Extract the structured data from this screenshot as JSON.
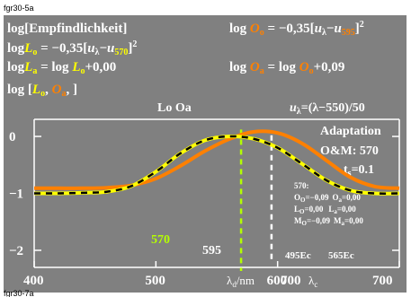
{
  "header": {
    "top_id": "fgr30-5a",
    "bottom_id": "fgr30-7a"
  },
  "formulas": {
    "left1": "log[Empfindlichkeit]",
    "left2_main": "log",
    "left2_var": "L",
    "left2_sub": "o",
    "left2_rest": " = −0,35[",
    "left2_u": "u",
    "left2_usub": "λ",
    "left2_minus": "−",
    "left2_u2": "u",
    "left2_u2sub": "570",
    "left2_close": "]",
    "left2_sup": "2",
    "left3_main": "log",
    "left3_var": "L",
    "left3_sub": "a",
    "left3_eq": " = log ",
    "left3_var2": "L",
    "left3_sub2": "o",
    "left3_rest": "+0,00",
    "left4_open": "log [",
    "left4_var1": "L",
    "left4_sub1": "o",
    "left4_comma": ", ",
    "left4_var2": "O",
    "left4_sub2": "a",
    "left4_close": ", ]",
    "right1_main": "log ",
    "right1_var": "O",
    "right1_sub": "o",
    "right1_rest": " = −0,35[",
    "right1_u": "u",
    "right1_usub": "λ",
    "right1_minus": "−",
    "right1_u2": "u",
    "right1_u2sub": "595",
    "right1_close": "]",
    "right1_sup": "2",
    "right2_main": "log ",
    "right2_var": "O",
    "right2_sub": "a",
    "right2_eq": " = log ",
    "right2_var2": "O",
    "right2_sub2": "o",
    "right2_rest": "+0,09"
  },
  "plot": {
    "peak_label": "Lo Oa",
    "u_formula": "u",
    "u_formula_sub": "λ",
    "u_formula_rest": "=(λ−550)/50",
    "adaptation": "Adaptation",
    "om": "O&M: 570",
    "ts": "t",
    "ts_sub": "s",
    "ts_rest": "=0.1",
    "marker_570": "570",
    "marker_595": "595",
    "ec495": "495Ec",
    "ec565": "565Ec",
    "info": {
      "title": "570:",
      "rows": [
        [
          "O",
          "O",
          "=−0,09",
          "O",
          "a",
          "=0,00"
        ],
        [
          "L",
          "O",
          "=0,00",
          "L",
          "a",
          "=0,00"
        ],
        [
          "M",
          "O",
          "=−0,09",
          "M",
          "a",
          "=0,00"
        ]
      ]
    }
  },
  "axis_labels": {
    "x_lambda_d": "λ",
    "x_lambda_d_sub": "d",
    "x_unit": "/nm",
    "x_700": "700",
    "x_lambda_c": "λ",
    "x_lambda_c_sub": "c"
  },
  "colors": {
    "background": "#808080",
    "yellow": "#ffff00",
    "orange": "#ff8000",
    "black_curve": "#000000",
    "white": "#ffffff",
    "yellowgreen": "#b4ff00"
  },
  "chart_data": {
    "type": "line",
    "xlim": [
      400,
      700
    ],
    "ylim": [
      -2.3,
      0.3
    ],
    "x_ticks": [
      400,
      500,
      600,
      700
    ],
    "y_ticks": [
      0,
      -1,
      -2
    ],
    "markers": [
      570,
      595
    ],
    "series": [
      {
        "name": "log Lo",
        "x": [
          400,
          420,
          440,
          460,
          480,
          500,
          520,
          540,
          560,
          580,
          600,
          620,
          640,
          660,
          680,
          700
        ],
        "values": [
          -1.0,
          -1.0,
          -0.99,
          -0.97,
          -0.87,
          -0.62,
          -0.3,
          -0.07,
          0.0,
          -0.04,
          -0.2,
          -0.48,
          -0.77,
          -0.95,
          -1.0,
          -1.0
        ]
      },
      {
        "name": "log Oa",
        "x": [
          400,
          420,
          440,
          460,
          480,
          500,
          520,
          540,
          560,
          580,
          600,
          620,
          640,
          660,
          680,
          700
        ],
        "values": [
          -0.91,
          -0.91,
          -0.91,
          -0.9,
          -0.86,
          -0.74,
          -0.52,
          -0.26,
          -0.05,
          0.08,
          0.06,
          -0.12,
          -0.42,
          -0.72,
          -0.88,
          -0.91
        ]
      },
      {
        "name": "log Lo (dashed reference)",
        "x": [
          400,
          420,
          440,
          460,
          480,
          500,
          520,
          540,
          560,
          580,
          600,
          620,
          640,
          660,
          680,
          700
        ],
        "values": [
          -1.0,
          -1.0,
          -0.99,
          -0.97,
          -0.87,
          -0.62,
          -0.3,
          -0.07,
          0.0,
          -0.04,
          -0.2,
          -0.48,
          -0.77,
          -0.95,
          -1.0,
          -1.0
        ]
      }
    ]
  }
}
